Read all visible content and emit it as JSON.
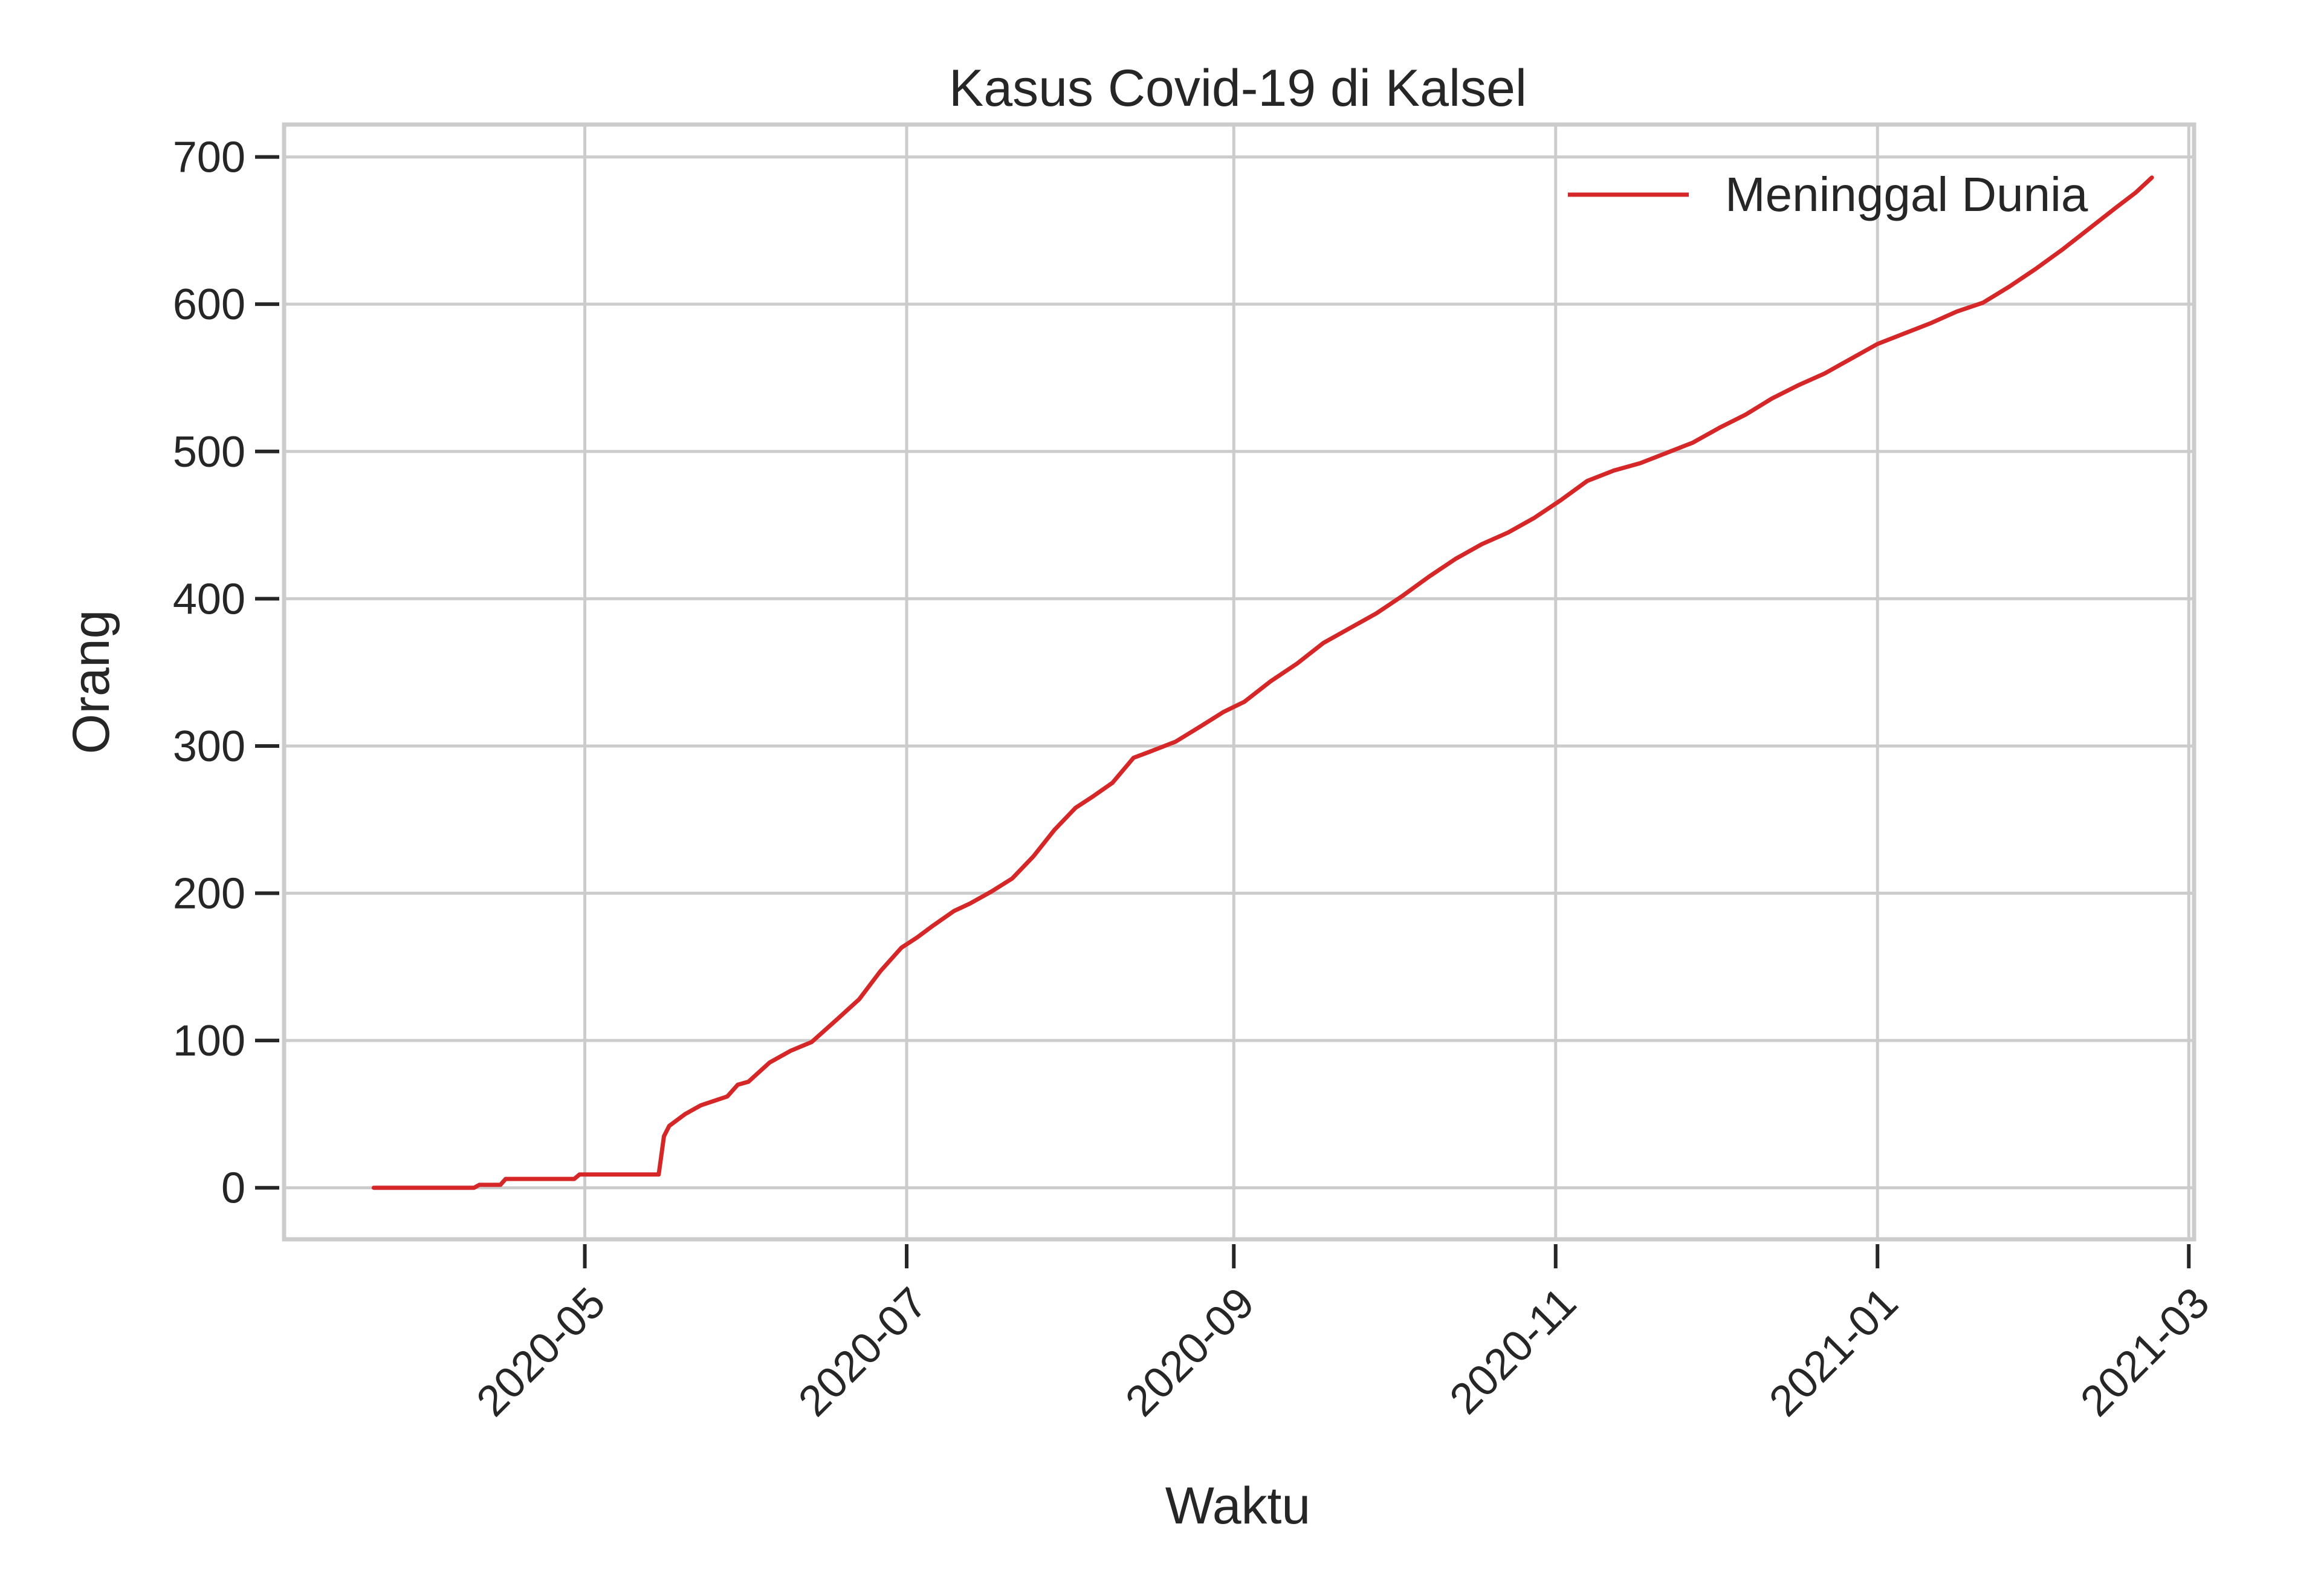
{
  "chart_data": {
    "type": "line",
    "title": "Kasus Covid-19 di Kalsel",
    "xlabel": "Waktu",
    "ylabel": "Orang",
    "x_type": "date",
    "xlim": [
      "2020-03-05",
      "2021-03-02"
    ],
    "ylim": [
      -35,
      722
    ],
    "grid": true,
    "legend_position": "top-right",
    "x_ticks": [
      "2020-05",
      "2020-07",
      "2020-09",
      "2020-11",
      "2021-01",
      "2021-03"
    ],
    "x_tick_dates": [
      "2020-05-01",
      "2020-07-01",
      "2020-09-01",
      "2020-11-01",
      "2021-01-01",
      "2021-03-01"
    ],
    "y_ticks": [
      0,
      100,
      200,
      300,
      400,
      500,
      600,
      700
    ],
    "series": [
      {
        "name": "Meninggal Dunia",
        "color": "#d62728",
        "points": [
          [
            "2020-03-22",
            0
          ],
          [
            "2020-04-10",
            0
          ],
          [
            "2020-04-11",
            2
          ],
          [
            "2020-04-15",
            2
          ],
          [
            "2020-04-16",
            6
          ],
          [
            "2020-04-29",
            6
          ],
          [
            "2020-04-30",
            9
          ],
          [
            "2020-05-15",
            9
          ],
          [
            "2020-05-16",
            35
          ],
          [
            "2020-05-17",
            42
          ],
          [
            "2020-05-20",
            50
          ],
          [
            "2020-05-23",
            56
          ],
          [
            "2020-05-28",
            62
          ],
          [
            "2020-05-30",
            70
          ],
          [
            "2020-06-01",
            72
          ],
          [
            "2020-06-05",
            85
          ],
          [
            "2020-06-09",
            93
          ],
          [
            "2020-06-13",
            99
          ],
          [
            "2020-06-18",
            115
          ],
          [
            "2020-06-22",
            128
          ],
          [
            "2020-06-26",
            147
          ],
          [
            "2020-06-30",
            163
          ],
          [
            "2020-07-03",
            170
          ],
          [
            "2020-07-06",
            178
          ],
          [
            "2020-07-10",
            188
          ],
          [
            "2020-07-13",
            193
          ],
          [
            "2020-07-17",
            201
          ],
          [
            "2020-07-21",
            210
          ],
          [
            "2020-07-25",
            225
          ],
          [
            "2020-07-29",
            243
          ],
          [
            "2020-08-02",
            258
          ],
          [
            "2020-08-05",
            265
          ],
          [
            "2020-08-09",
            275
          ],
          [
            "2020-08-13",
            292
          ],
          [
            "2020-08-16",
            296
          ],
          [
            "2020-08-21",
            303
          ],
          [
            "2020-08-26",
            314
          ],
          [
            "2020-08-30",
            323
          ],
          [
            "2020-09-03",
            330
          ],
          [
            "2020-09-08",
            344
          ],
          [
            "2020-09-13",
            356
          ],
          [
            "2020-09-18",
            370
          ],
          [
            "2020-09-23",
            380
          ],
          [
            "2020-09-28",
            390
          ],
          [
            "2020-10-03",
            402
          ],
          [
            "2020-10-08",
            415
          ],
          [
            "2020-10-13",
            427
          ],
          [
            "2020-10-18",
            437
          ],
          [
            "2020-10-23",
            445
          ],
          [
            "2020-10-28",
            455
          ],
          [
            "2020-11-02",
            467
          ],
          [
            "2020-11-07",
            480
          ],
          [
            "2020-11-12",
            487
          ],
          [
            "2020-11-17",
            492
          ],
          [
            "2020-11-22",
            499
          ],
          [
            "2020-11-27",
            506
          ],
          [
            "2020-12-02",
            516
          ],
          [
            "2020-12-07",
            525
          ],
          [
            "2020-12-12",
            536
          ],
          [
            "2020-12-17",
            545
          ],
          [
            "2020-12-22",
            553
          ],
          [
            "2020-12-27",
            563
          ],
          [
            "2021-01-01",
            573
          ],
          [
            "2021-01-06",
            580
          ],
          [
            "2021-01-11",
            587
          ],
          [
            "2021-01-16",
            595
          ],
          [
            "2021-01-21",
            601
          ],
          [
            "2021-01-26",
            612
          ],
          [
            "2021-01-31",
            624
          ],
          [
            "2021-02-05",
            637
          ],
          [
            "2021-02-10",
            651
          ],
          [
            "2021-02-15",
            665
          ],
          [
            "2021-02-19",
            676
          ],
          [
            "2021-02-22",
            686
          ]
        ]
      }
    ]
  }
}
